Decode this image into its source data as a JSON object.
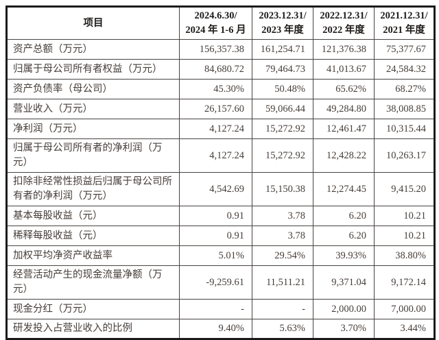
{
  "table": {
    "columns": [
      {
        "label": "项目"
      },
      {
        "line1": "2024.6.30/",
        "line2": "2024 年 1-6 月"
      },
      {
        "line1": "2023.12.31/",
        "line2": "2023 年度"
      },
      {
        "line1": "2022.12.31/",
        "line2": "2022 年度"
      },
      {
        "line1": "2021.12.31/",
        "line2": "2021 年度"
      }
    ],
    "rows": [
      {
        "label": "资产总额（万元）",
        "values": [
          "156,357.38",
          "161,254.71",
          "121,376.38",
          "75,377.67"
        ]
      },
      {
        "label": "归属于母公司所有者权益（万元）",
        "values": [
          "84,680.72",
          "79,464.73",
          "41,013.67",
          "24,584.32"
        ]
      },
      {
        "label": "资产负债率（母公司）",
        "values": [
          "45.30%",
          "50.48%",
          "65.62%",
          "68.27%"
        ]
      },
      {
        "label": "营业收入（万元）",
        "values": [
          "26,157.60",
          "59,066.44",
          "49,284.80",
          "38,008.85"
        ]
      },
      {
        "label": "净利润（万元）",
        "values": [
          "4,127.24",
          "15,272.92",
          "12,461.47",
          "10,315.44"
        ]
      },
      {
        "label": "归属于母公司所有者的净利润（万元）",
        "values": [
          "4,127.24",
          "15,272.92",
          "12,428.22",
          "10,263.17"
        ]
      },
      {
        "label": "扣除非经常性损益后归属于母公司所有者的净利润（万元）",
        "values": [
          "4,542.69",
          "15,150.38",
          "12,274.45",
          "9,415.20"
        ]
      },
      {
        "label": "基本每股收益（元）",
        "values": [
          "0.91",
          "3.78",
          "6.20",
          "10.21"
        ]
      },
      {
        "label": "稀释每股收益（元）",
        "values": [
          "0.91",
          "3.78",
          "6.20",
          "10.21"
        ]
      },
      {
        "label": "加权平均净资产收益率",
        "values": [
          "5.01%",
          "29.54%",
          "39.93%",
          "38.80%"
        ]
      },
      {
        "label": "经营活动产生的现金流量净额（万元）",
        "values": [
          "-9,259.61",
          "11,511.21",
          "9,371.04",
          "9,172.14"
        ]
      },
      {
        "label": "现金分红（万元）",
        "values": [
          "-",
          "-",
          "2,000.00",
          "7,000.00"
        ]
      },
      {
        "label": "研发投入占营业收入的比例",
        "values": [
          "9.40%",
          "5.63%",
          "3.70%",
          "3.44%"
        ]
      }
    ]
  }
}
